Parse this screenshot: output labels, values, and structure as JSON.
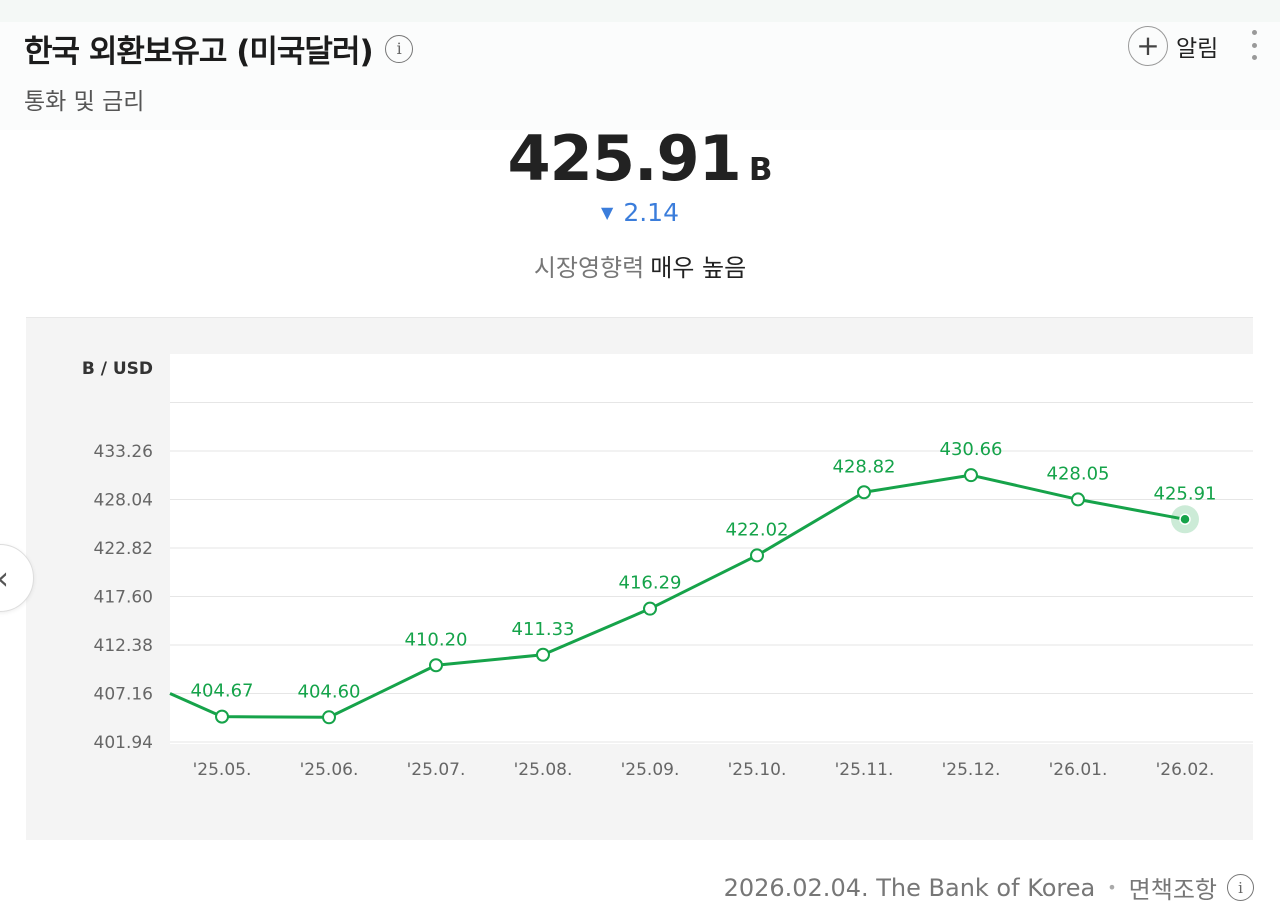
{
  "header": {
    "title": "한국 외환보유고 (미국달러)",
    "subtitle": "통화 및 금리",
    "alarm_label": "알림",
    "alarm_plus": "+",
    "info_glyph": "i"
  },
  "summary": {
    "value": "425.91",
    "unit": "B",
    "change_arrow": "▼",
    "change": "2.14",
    "impact_label": "시장영향력",
    "impact_value": "매우 높음"
  },
  "nav": {
    "prev_glyph": "‹"
  },
  "footer": {
    "date": "2026.02.04.",
    "source": "The Bank of Korea",
    "separator": "•",
    "disclaimer": "면책조항"
  },
  "colors": {
    "line": "#16a34a",
    "label": "#15a34a",
    "change": "#3b7ddb"
  },
  "chart_data": {
    "type": "line",
    "ylabel": "B / USD",
    "yticks": [
      401.94,
      407.16,
      412.38,
      417.6,
      422.82,
      428.04,
      433.26
    ],
    "ytick_labels": [
      "401.94",
      "407.16",
      "412.38",
      "417.60",
      "422.82",
      "428.04",
      "433.26"
    ],
    "ylim": [
      401.94,
      443.7
    ],
    "categories": [
      "'25.05.",
      "'25.06.",
      "'25.07.",
      "'25.08.",
      "'25.09.",
      "'25.10.",
      "'25.11.",
      "'25.12.",
      "'26.01.",
      "'26.02."
    ],
    "values": [
      404.67,
      404.6,
      410.2,
      411.33,
      416.29,
      422.02,
      428.82,
      430.66,
      428.05,
      425.91
    ],
    "value_labels": [
      "404.67",
      "404.60",
      "410.20",
      "411.33",
      "416.29",
      "422.02",
      "428.82",
      "430.66",
      "428.05",
      "425.91"
    ],
    "lead_in_value": 407.16,
    "highlight_index": 9,
    "grid": true
  }
}
